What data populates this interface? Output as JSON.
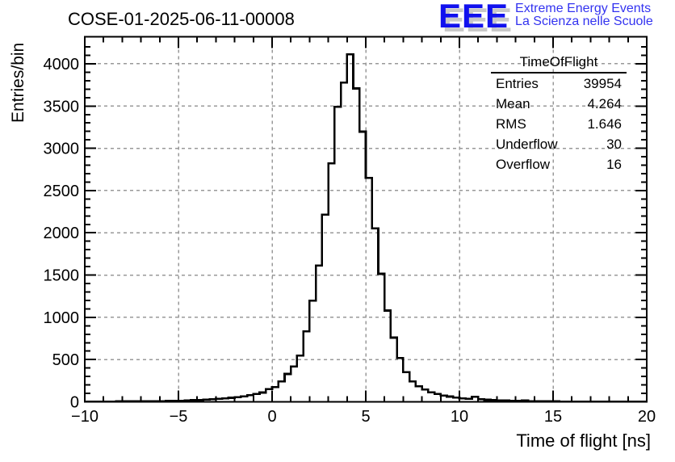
{
  "title": "COSE-01-2025-06-11-00008",
  "logo": {
    "eee": "EEE",
    "line1": "Extreme Energy Events",
    "line2": "La Scienza nelle Scuole"
  },
  "stats": {
    "title": "TimeOfFlight",
    "rows": [
      {
        "label": "Entries",
        "value": "39954"
      },
      {
        "label": "Mean",
        "value": "4.264"
      },
      {
        "label": "RMS",
        "value": "1.646"
      },
      {
        "label": "Underflow",
        "value": "30"
      },
      {
        "label": "Overflow",
        "value": "16"
      }
    ]
  },
  "colors": {
    "histogram": "#000000",
    "frame": "#000000",
    "grid": "#999999",
    "text": "#000000",
    "logo_blue": "#1111ee",
    "logo_text_blue": "#3333f0",
    "logo_shadow": "#c8c8c8"
  },
  "chart_data": {
    "type": "bar",
    "subtype": "step-histogram",
    "title": "COSE-01-2025-06-11-00008",
    "xlabel": "Time of flight [ns]",
    "ylabel": "Entries/bin",
    "xlim": [
      -10,
      20
    ],
    "ylim": [
      0,
      4320
    ],
    "grid": true,
    "bins": {
      "start": -10,
      "end": 20,
      "count": 90
    },
    "x_major_ticks": [
      -10,
      -5,
      0,
      5,
      10,
      15,
      20
    ],
    "x_tick_labels": [
      "−10",
      "−5",
      "0",
      "5",
      "10",
      "15",
      "20"
    ],
    "x_minor_step": 1,
    "y_major_step": 500,
    "y_major_ticks": [
      0,
      500,
      1000,
      1500,
      2000,
      2500,
      3000,
      3500,
      4000
    ],
    "y_tick_labels": [
      "0",
      "500",
      "1000",
      "1500",
      "2000",
      "2500",
      "3000",
      "3500",
      "4000"
    ],
    "y_minor_step": 100,
    "values": [
      3,
      3,
      3,
      4,
      4,
      5,
      5,
      6,
      6,
      7,
      7,
      8,
      9,
      10,
      12,
      13,
      15,
      19,
      22,
      26,
      30,
      35,
      41,
      48,
      56,
      66,
      78,
      92,
      110,
      150,
      176,
      240,
      330,
      420,
      547,
      833,
      1197,
      1611,
      2214,
      2823,
      3492,
      3777,
      4113,
      3708,
      3197,
      2648,
      2054,
      1515,
      1080,
      760,
      520,
      350,
      240,
      183,
      145,
      112,
      93,
      74,
      62,
      50,
      42,
      36,
      60,
      30,
      24,
      20,
      17,
      14,
      12,
      10,
      16,
      8,
      7,
      6,
      5,
      5,
      4,
      4,
      3,
      3,
      3,
      2,
      2,
      2,
      2,
      2,
      1,
      1,
      1,
      1
    ]
  }
}
